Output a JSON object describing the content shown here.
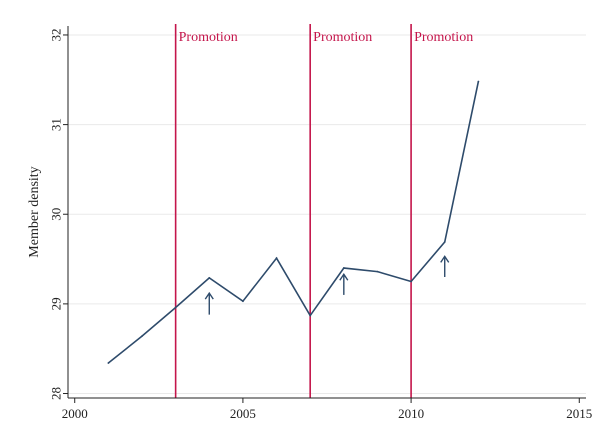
{
  "chart_data": {
    "type": "line",
    "title": "",
    "xlabel": "",
    "ylabel": "Member density",
    "xlim": [
      1999.8,
      2015.2
    ],
    "ylim": [
      27.95,
      32.1
    ],
    "xticks": [
      2000,
      2005,
      2010,
      2015
    ],
    "yticks": [
      28,
      29,
      30,
      31,
      32
    ],
    "grid": true,
    "legend": "none",
    "colors": {
      "line": "#2e4b6b",
      "promotion": "#c4154b",
      "arrow": "#2e4b6b",
      "grid": "#eaeaea",
      "axis": "#222222"
    },
    "series": [
      {
        "x": [
          2001,
          2002,
          2003,
          2004,
          2005,
          2006,
          2007,
          2008,
          2009,
          2010,
          2011,
          2012
        ],
        "y": [
          28.34,
          28.64,
          28.96,
          29.29,
          29.03,
          29.51,
          28.87,
          29.4,
          29.36,
          29.25,
          29.69,
          31.48
        ]
      }
    ],
    "annotations": {
      "promotion_lines": [
        {
          "x": 2003,
          "label": "Promotion"
        },
        {
          "x": 2007,
          "label": "Promotion"
        },
        {
          "x": 2010,
          "label": "Promotion"
        }
      ],
      "arrows": [
        {
          "x": 2004,
          "y_tail": 28.88,
          "y_head": 29.12
        },
        {
          "x": 2008,
          "y_tail": 29.1,
          "y_head": 29.33
        },
        {
          "x": 2011,
          "y_tail": 29.3,
          "y_head": 29.53
        }
      ]
    }
  }
}
